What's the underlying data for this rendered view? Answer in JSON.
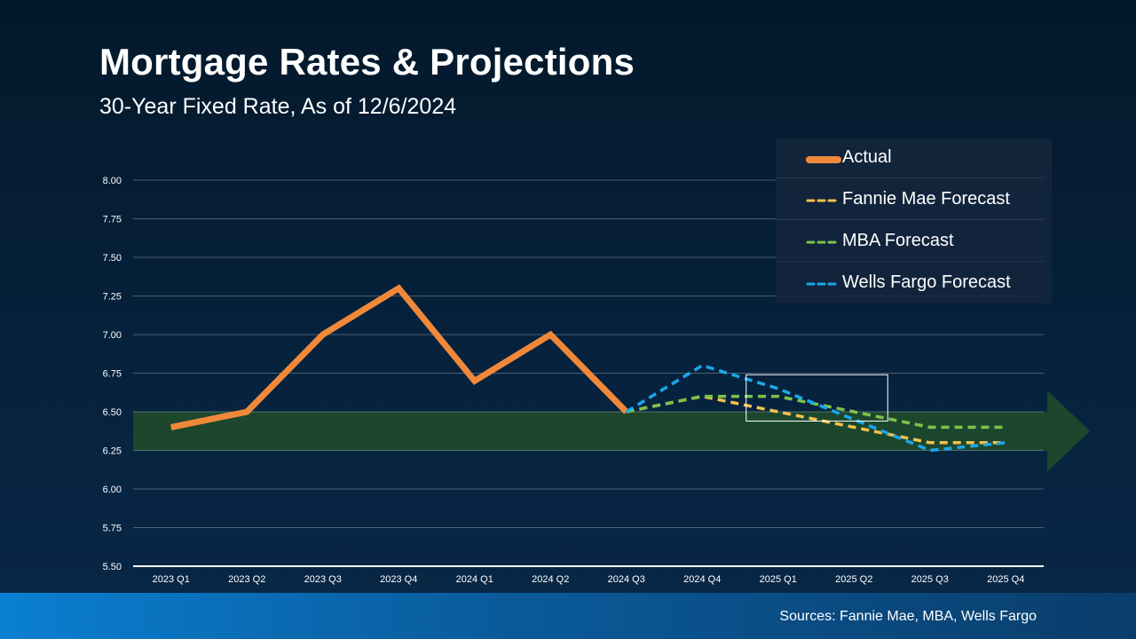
{
  "title": "Mortgage Rates & Projections",
  "subtitle": "30-Year Fixed Rate, As of 12/6/2024",
  "sources": "Sources: Fannie Mae, MBA, Wells Fargo",
  "colors": {
    "actual": "#f0883a",
    "fannie": "#f2c14e",
    "mba": "#7dc24b",
    "wells": "#1aa7ec",
    "band": "#1e4a2c"
  },
  "chart_data": {
    "type": "line",
    "title": "Mortgage Rates & Projections",
    "subtitle": "30-Year Fixed Rate, As of 12/6/2024",
    "categories": [
      "2023 Q1",
      "2023 Q2",
      "2023 Q3",
      "2023 Q4",
      "2024 Q1",
      "2024 Q2",
      "2024 Q3",
      "2024 Q4",
      "2025 Q1",
      "2025 Q2",
      "2025 Q3",
      "2025 Q4"
    ],
    "ylim": [
      5.5,
      8.0
    ],
    "yticks": [
      "8.00",
      "7.75",
      "7.50",
      "7.25",
      "7.00",
      "6.75",
      "6.50",
      "6.25",
      "6.00",
      "5.75",
      "5.50"
    ],
    "ytick_values": [
      8.0,
      7.75,
      7.5,
      7.25,
      7.0,
      6.75,
      6.5,
      6.25,
      6.0,
      5.75,
      5.5
    ],
    "highlight_band": [
      6.25,
      6.5
    ],
    "legend_position": "top-right",
    "series": [
      {
        "name": "Actual",
        "style": "solid",
        "values": [
          6.4,
          6.5,
          7.0,
          7.3,
          6.7,
          7.0,
          6.5,
          null,
          null,
          null,
          null,
          null
        ]
      },
      {
        "name": "Fannie Mae Forecast",
        "style": "dashed",
        "values": [
          null,
          null,
          null,
          null,
          null,
          null,
          6.5,
          6.6,
          6.5,
          6.4,
          6.3,
          6.3
        ]
      },
      {
        "name": "MBA Forecast",
        "style": "dashed",
        "values": [
          null,
          null,
          null,
          null,
          null,
          null,
          6.5,
          6.6,
          6.6,
          6.5,
          6.4,
          6.4
        ]
      },
      {
        "name": "Wells Fargo Forecast",
        "style": "dashed",
        "values": [
          null,
          null,
          null,
          null,
          null,
          null,
          6.5,
          6.8,
          6.65,
          6.45,
          6.25,
          6.3
        ]
      }
    ]
  },
  "legend": [
    {
      "label": "Actual"
    },
    {
      "label": "Fannie Mae Forecast"
    },
    {
      "label": "MBA Forecast"
    },
    {
      "label": "Wells Fargo Forecast"
    }
  ]
}
